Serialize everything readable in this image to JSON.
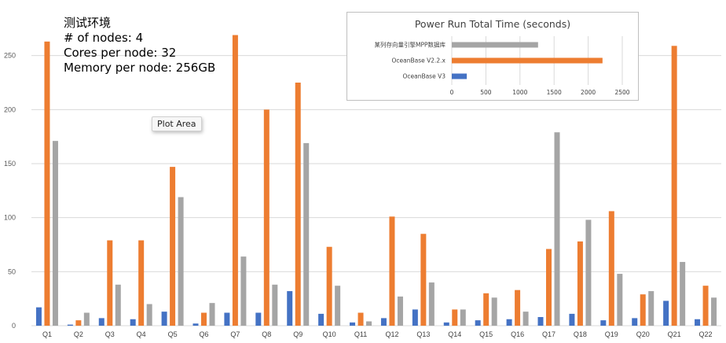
{
  "info": {
    "title": "测试环境",
    "lines": [
      "# of nodes: 4",
      "Cores per node: 32",
      "Memory per node: 256GB"
    ]
  },
  "tooltip": "Plot Area",
  "colors": {
    "blue": "#4472c4",
    "orange": "#ed7d31",
    "gray": "#a5a5a5",
    "grid": "#d9d9d9"
  },
  "chart_data": [
    {
      "type": "bar",
      "title": "",
      "xlabel": "",
      "ylabel": "",
      "ylim": [
        0,
        300
      ],
      "yticks": [
        0,
        50,
        100,
        150,
        200,
        250
      ],
      "grid": true,
      "categories": [
        "Q1",
        "Q2",
        "Q3",
        "Q4",
        "Q5",
        "Q6",
        "Q7",
        "Q8",
        "Q9",
        "Q10",
        "Q11",
        "Q12",
        "Q13",
        "Q14",
        "Q15",
        "Q16",
        "Q17",
        "Q18",
        "Q19",
        "Q20",
        "Q21",
        "Q22"
      ],
      "series": [
        {
          "color": "#4472c4",
          "values": [
            17,
            1,
            7,
            6,
            13,
            2,
            12,
            12,
            32,
            11,
            3,
            7,
            15,
            3,
            5,
            6,
            8,
            11,
            5,
            7,
            23,
            6
          ]
        },
        {
          "color": "#ed7d31",
          "values": [
            263,
            5,
            79,
            79,
            147,
            12,
            269,
            200,
            225,
            73,
            12,
            101,
            85,
            15,
            30,
            33,
            71,
            78,
            106,
            29,
            259,
            37
          ]
        },
        {
          "color": "#a5a5a5",
          "values": [
            171,
            12,
            38,
            20,
            119,
            21,
            64,
            38,
            169,
            37,
            4,
            27,
            40,
            15,
            26,
            13,
            179,
            98,
            48,
            32,
            59,
            26
          ]
        }
      ]
    },
    {
      "type": "bar",
      "orientation": "horizontal",
      "title": "Power Run Total Time (seconds)",
      "xlim": [
        0,
        2500
      ],
      "xticks": [
        0,
        500,
        1000,
        1500,
        2000,
        2500
      ],
      "grid": true,
      "categories": [
        "某列存向量引擎MPP数据库",
        "OceanBase V2.2.x",
        "OceanBase V3"
      ],
      "values": [
        1265,
        2210,
        220
      ],
      "colors": [
        "#a5a5a5",
        "#ed7d31",
        "#4472c4"
      ]
    }
  ]
}
